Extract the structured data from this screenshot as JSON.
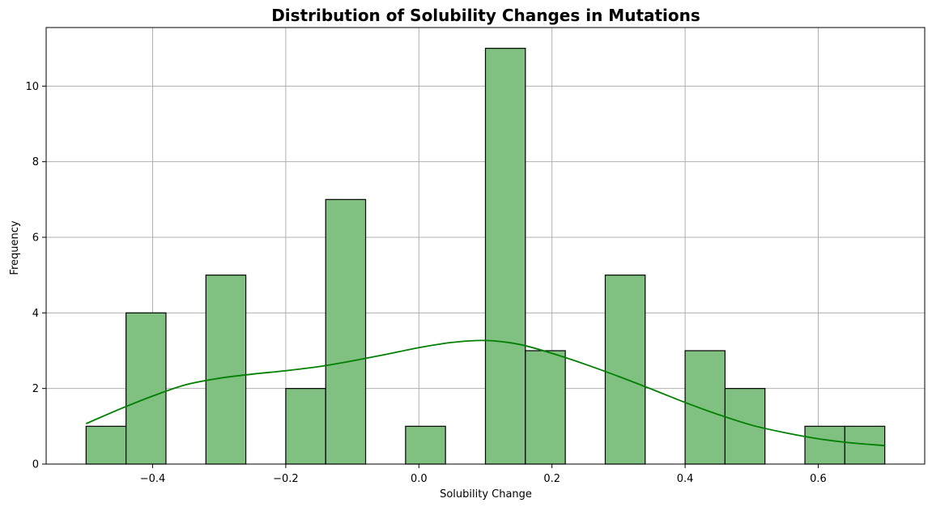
{
  "chart_data": {
    "type": "bar",
    "title": "Distribution of Solubility Changes in Mutations",
    "xlabel": "Solubility Change",
    "ylabel": "Frequency",
    "xlim": [
      -0.56,
      0.76
    ],
    "ylim": [
      0,
      11.55
    ],
    "grid": true,
    "bin_edges": [
      -0.5,
      -0.44,
      -0.38,
      -0.32,
      -0.26,
      -0.2,
      -0.14,
      -0.08,
      -0.02,
      0.04,
      0.1,
      0.16,
      0.22,
      0.28,
      0.34,
      0.4,
      0.46,
      0.52,
      0.58,
      0.64,
      0.7
    ],
    "counts": [
      1,
      4,
      0,
      5,
      0,
      2,
      7,
      0,
      1,
      0,
      11,
      3,
      0,
      5,
      0,
      3,
      2,
      0,
      1,
      1
    ],
    "bar_color": "#80c080",
    "kde": {
      "color": "#008000",
      "x": [
        -0.5,
        -0.45,
        -0.4,
        -0.35,
        -0.3,
        -0.25,
        -0.2,
        -0.15,
        -0.1,
        -0.05,
        0.0,
        0.05,
        0.1,
        0.15,
        0.2,
        0.25,
        0.3,
        0.35,
        0.4,
        0.45,
        0.5,
        0.55,
        0.6,
        0.65,
        0.7
      ],
      "y": [
        1.07,
        1.45,
        1.8,
        2.1,
        2.27,
        2.38,
        2.47,
        2.58,
        2.73,
        2.9,
        3.08,
        3.22,
        3.27,
        3.17,
        2.93,
        2.64,
        2.32,
        1.98,
        1.63,
        1.31,
        1.03,
        0.83,
        0.67,
        0.56,
        0.49
      ]
    },
    "x_ticks": [
      -0.4,
      -0.2,
      0.0,
      0.2,
      0.4,
      0.6
    ],
    "x_tick_labels": [
      "−0.4",
      "−0.2",
      "0.0",
      "0.2",
      "0.4",
      "0.6"
    ],
    "y_ticks": [
      0,
      2,
      4,
      6,
      8,
      10
    ],
    "y_tick_labels": [
      "0",
      "2",
      "4",
      "6",
      "8",
      "10"
    ]
  }
}
